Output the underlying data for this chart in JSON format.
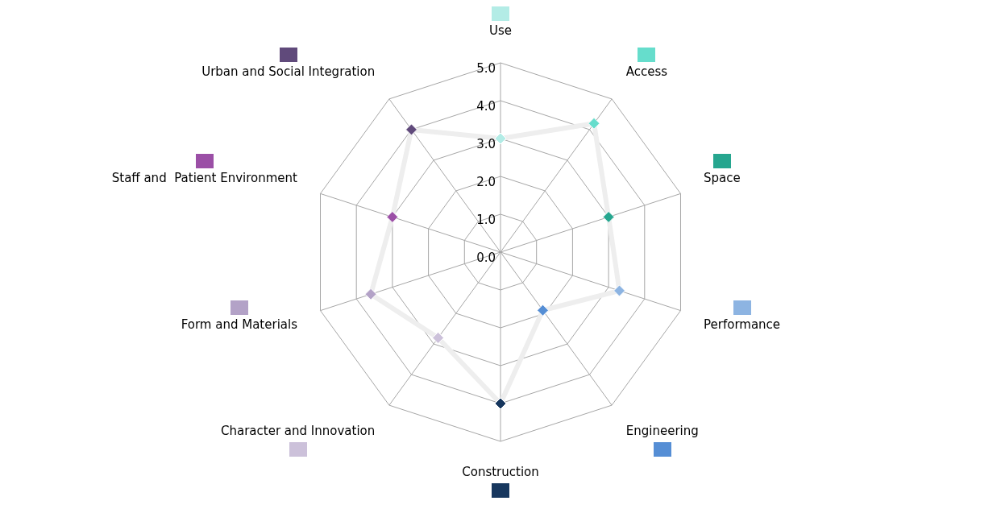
{
  "chart_data": {
    "type": "radar",
    "categories": [
      "Use",
      "Access",
      "Space",
      "Performance",
      "Engineering",
      "Construction",
      "Character and Innovation",
      "Form and Materials",
      "Staff and  Patient Environment",
      "Urban and Social Integration"
    ],
    "series": [
      {
        "color": "#eeeeee",
        "colors": [
          "#b3ece6",
          "#66ddcc",
          "#26a68f",
          "#8db4e2",
          "#558ed5",
          "#17375e",
          "#ccc1da",
          "#b3a2c7",
          "#9b4fa6",
          "#604a7b"
        ],
        "values": [
          3.0,
          4.2,
          3.0,
          3.3,
          1.9,
          4.0,
          2.8,
          3.6,
          3.0,
          4.0
        ]
      }
    ],
    "ylim": [
      0,
      5
    ],
    "yticks": [
      {
        "value": 0,
        "label": "0.0"
      },
      {
        "value": 1,
        "label": "1.0"
      },
      {
        "value": 2,
        "label": "2.0"
      },
      {
        "value": 3,
        "label": "3.0"
      },
      {
        "value": 4,
        "label": "4.0"
      },
      {
        "value": 5,
        "label": "5.0"
      }
    ],
    "grid": true,
    "marker": "diamond",
    "line_style": "solid"
  }
}
